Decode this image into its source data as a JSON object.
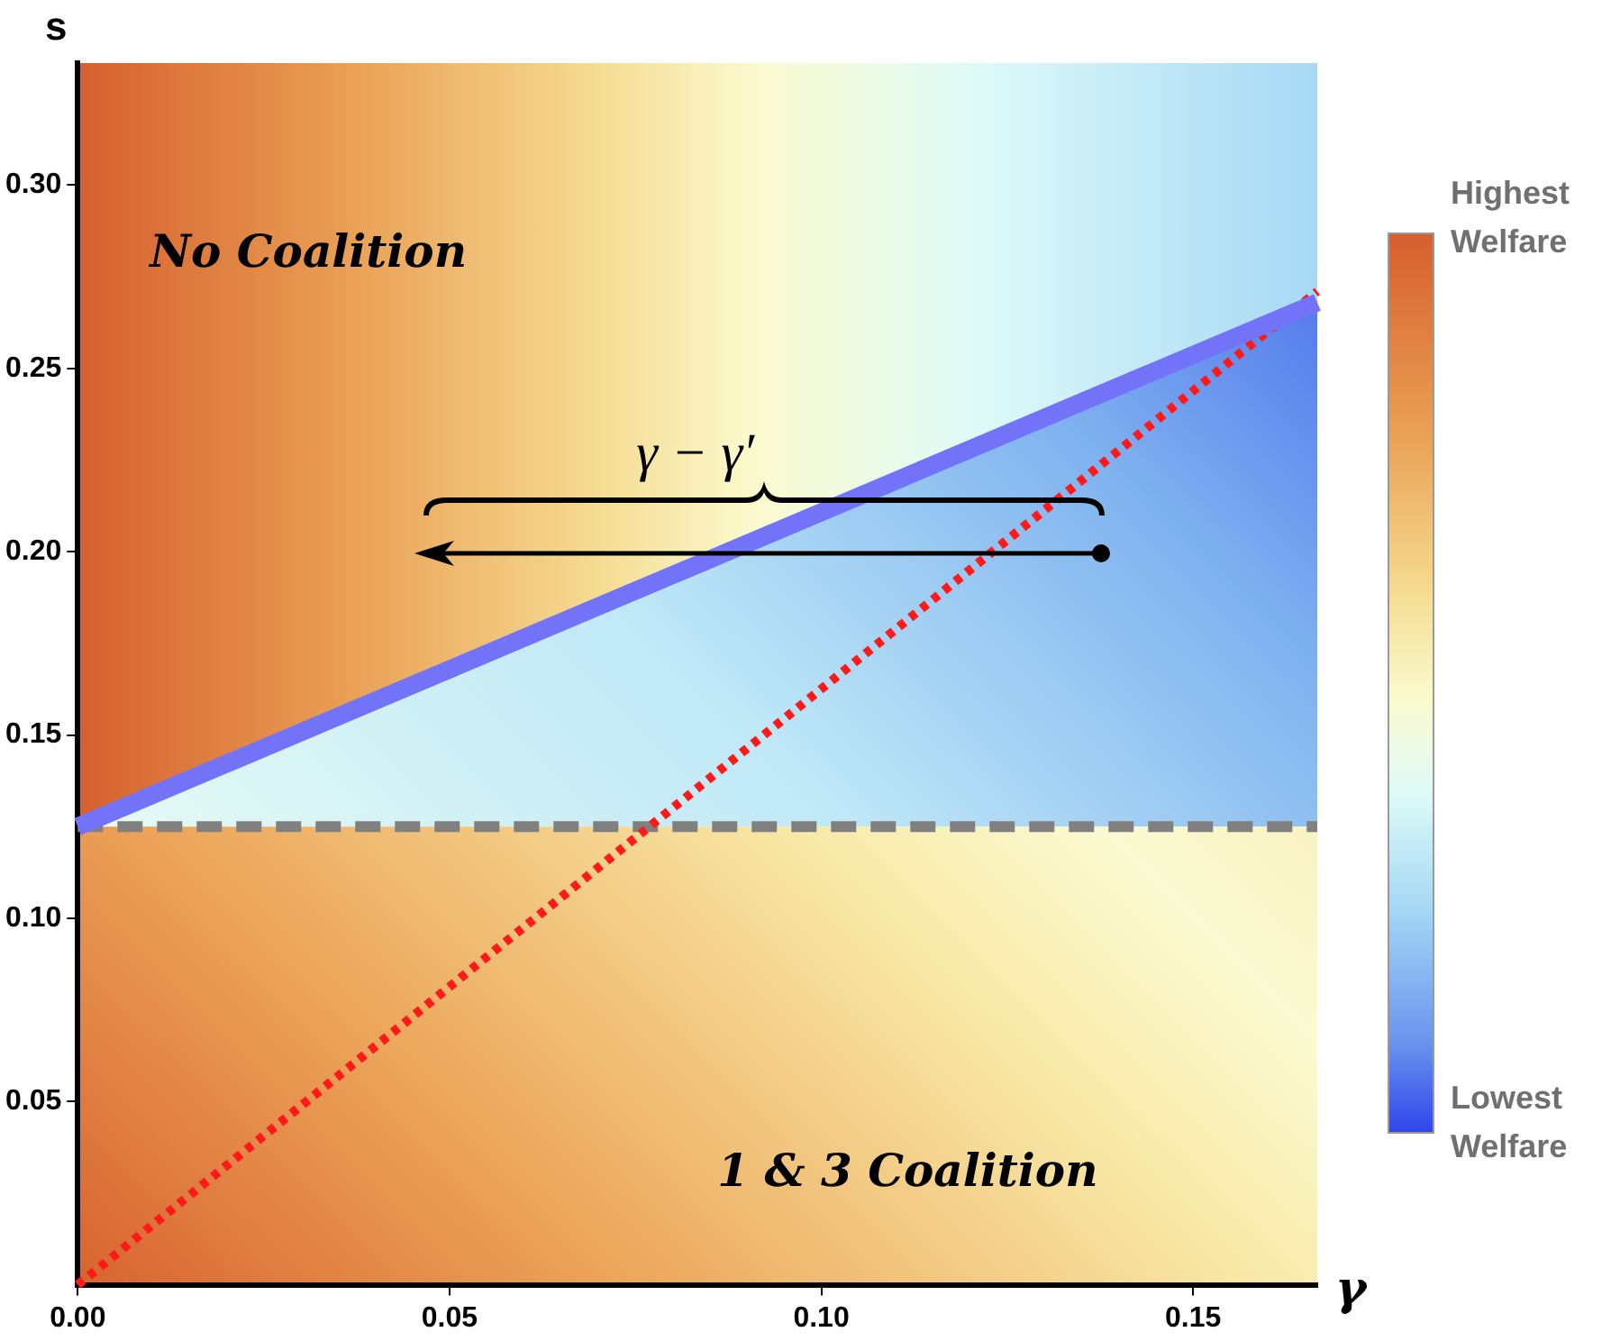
{
  "chart_data": {
    "type": "line",
    "xlabel": "γ",
    "ylabel": "s",
    "xlim": [
      0,
      0.1667
    ],
    "ylim": [
      0,
      0.3333
    ],
    "xticks": [
      {
        "value": 0,
        "label": "0.00"
      },
      0.05,
      {
        "value": 0.1,
        "label": "0.10"
      },
      0.15
    ],
    "yticks": [
      0.05,
      {
        "value": 0.1,
        "label": "0.10"
      },
      0.15,
      {
        "value": 0.2,
        "label": "0.20"
      },
      0.25,
      {
        "value": 0.3,
        "label": "0.30"
      }
    ],
    "x": [
      0,
      0.1667
    ],
    "series": [
      {
        "color": "#7373fa",
        "values": [
          0.125,
          0.268
        ],
        "line_style": "solid"
      },
      {
        "color": "#ff1a1a",
        "values": [
          0,
          0.271
        ],
        "line_style": "dotted"
      }
    ],
    "ref_lines": [
      {
        "axis": "y",
        "value": 0.125,
        "color": "#808080",
        "line_style": "dashed"
      }
    ],
    "annotations": [
      "No Coalition",
      "1 & 3 Coalition",
      "γ − γ′",
      "Highest Welfare",
      "Lowest Welfare"
    ],
    "grid": false,
    "legend": false,
    "marker": "none"
  }
}
